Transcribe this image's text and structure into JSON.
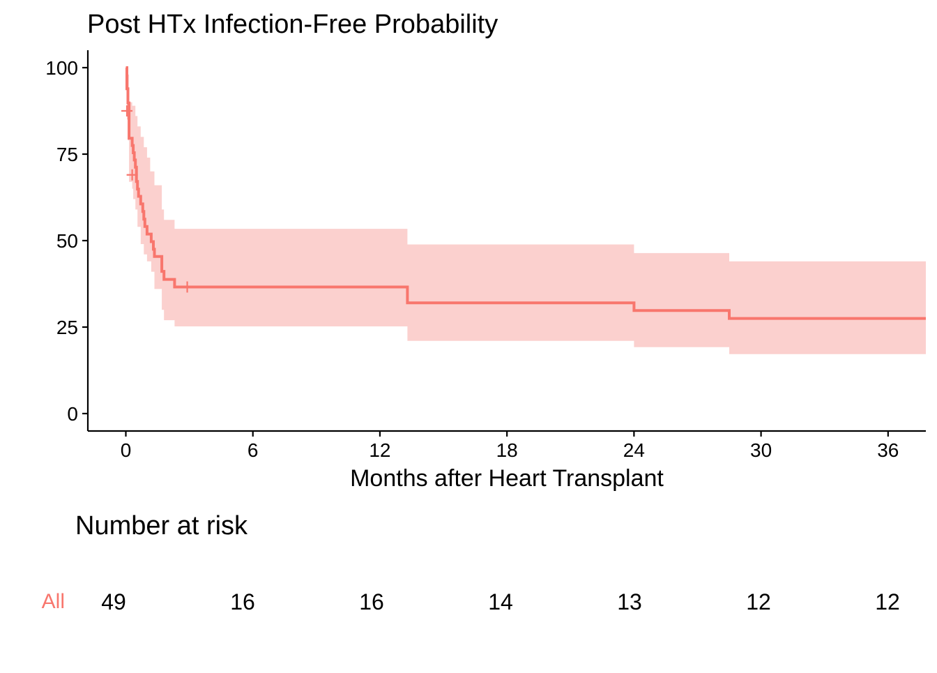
{
  "chart_data": {
    "type": "line",
    "subtype": "kaplan-meier survival curve",
    "title": "Post HTx Infection-Free Probability",
    "xlabel": "Months after Heart Transplant",
    "ylabel": "",
    "xlim": [
      -1.5,
      38
    ],
    "ylim": [
      -5,
      105
    ],
    "xticks": [
      0,
      6,
      12,
      18,
      24,
      30,
      36
    ],
    "yticks": [
      0,
      25,
      50,
      75,
      100
    ],
    "grid": false,
    "color": "#F8766D",
    "ci_color": "#FBD0CE",
    "series": [
      {
        "name": "All",
        "step_points": [
          [
            0,
            100
          ],
          [
            0.05,
            93.9
          ],
          [
            0.1,
            89.8
          ],
          [
            0.15,
            79.6
          ],
          [
            0.3,
            77.5
          ],
          [
            0.35,
            75.4
          ],
          [
            0.4,
            73.3
          ],
          [
            0.45,
            71.2
          ],
          [
            0.5,
            67.1
          ],
          [
            0.55,
            64.9
          ],
          [
            0.6,
            62.8
          ],
          [
            0.7,
            60.6
          ],
          [
            0.8,
            58.4
          ],
          [
            0.85,
            56.2
          ],
          [
            0.9,
            54.1
          ],
          [
            1.0,
            51.9
          ],
          [
            1.2,
            49.7
          ],
          [
            1.3,
            47.5
          ],
          [
            1.35,
            45.4
          ],
          [
            1.7,
            41.1
          ],
          [
            1.8,
            38.8
          ],
          [
            2.3,
            36.6
          ],
          [
            13.3,
            32.0
          ],
          [
            24.0,
            29.8
          ],
          [
            28.5,
            27.5
          ],
          [
            38,
            27.5
          ]
        ],
        "ci_upper": [
          [
            0,
            100
          ],
          [
            0.1,
            98
          ],
          [
            0.15,
            90
          ],
          [
            0.3,
            89
          ],
          [
            0.45,
            86
          ],
          [
            0.55,
            83
          ],
          [
            0.7,
            80
          ],
          [
            0.85,
            77
          ],
          [
            1.0,
            74
          ],
          [
            1.15,
            70
          ],
          [
            1.35,
            66
          ],
          [
            1.7,
            59
          ],
          [
            1.8,
            56
          ],
          [
            2.3,
            53.4
          ],
          [
            13.3,
            48.9
          ],
          [
            24.0,
            46.4
          ],
          [
            28.5,
            44.0
          ],
          [
            38,
            44.0
          ]
        ],
        "ci_lower": [
          [
            0,
            100
          ],
          [
            0.05,
            85
          ],
          [
            0.1,
            79
          ],
          [
            0.15,
            67
          ],
          [
            0.3,
            65
          ],
          [
            0.35,
            62
          ],
          [
            0.45,
            59
          ],
          [
            0.55,
            54
          ],
          [
            0.7,
            49
          ],
          [
            0.85,
            46
          ],
          [
            1.0,
            44
          ],
          [
            1.2,
            41
          ],
          [
            1.35,
            36
          ],
          [
            1.7,
            30
          ],
          [
            1.8,
            27
          ],
          [
            2.3,
            25.2
          ],
          [
            13.3,
            21.0
          ],
          [
            24.0,
            19.2
          ],
          [
            28.5,
            17.2
          ],
          [
            38,
            17.2
          ]
        ],
        "censor_marks": [
          [
            0.05,
            87.5
          ],
          [
            0.3,
            69
          ],
          [
            2.9,
            36.6
          ]
        ]
      }
    ],
    "risk_table": {
      "title": "Number at risk",
      "strata": [
        {
          "label": "All",
          "times": [
            0,
            6,
            12,
            18,
            24,
            30,
            36
          ],
          "counts": [
            49,
            16,
            16,
            14,
            13,
            12,
            12
          ]
        }
      ]
    }
  }
}
